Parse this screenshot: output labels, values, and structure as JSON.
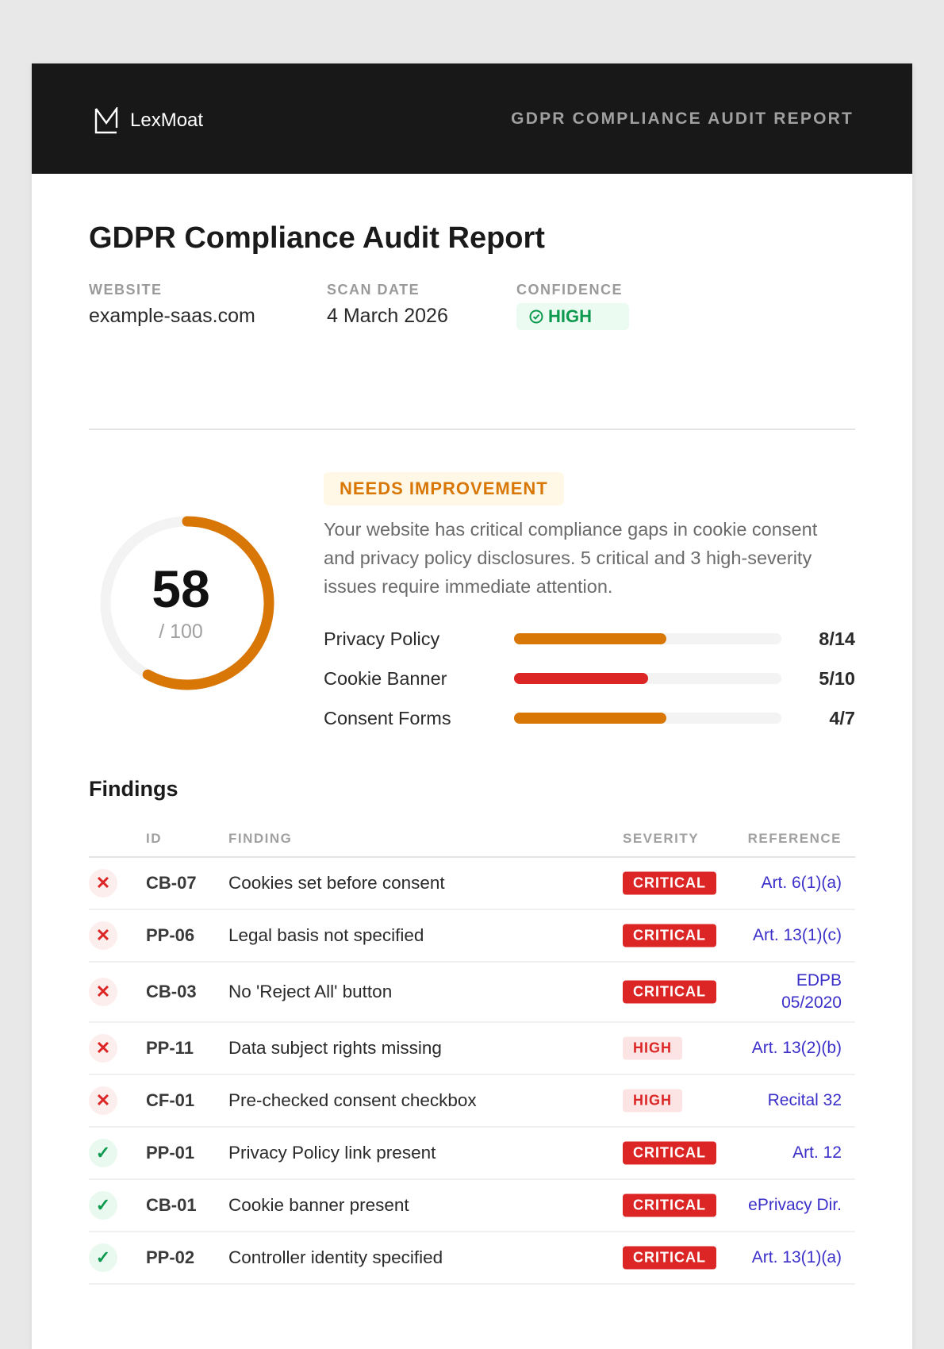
{
  "header": {
    "brand": "LexMoat",
    "title": "GDPR COMPLIANCE AUDIT REPORT"
  },
  "report": {
    "title": "GDPR Compliance Audit Report",
    "meta": [
      {
        "label": "WEBSITE",
        "value": "example-saas.com"
      },
      {
        "label": "SCAN DATE",
        "value": "4 March 2026"
      },
      {
        "label": "CONFIDENCE",
        "value": "HIGH"
      }
    ]
  },
  "score": {
    "value": "58",
    "max": "/ 100",
    "fraction": 0.58,
    "color": "#d97706"
  },
  "status": {
    "badge": "NEEDS IMPROVEMENT",
    "summary": "Your website has critical compliance gaps in cookie consent and privacy policy disclosures. 5 critical and 3 high-severity issues require immediate attention."
  },
  "categories": [
    {
      "label": "Privacy Policy",
      "value": "8/14",
      "fraction": 0.571,
      "color": "#d97706"
    },
    {
      "label": "Cookie Banner",
      "value": "5/10",
      "fraction": 0.5,
      "color": "#dc2626"
    },
    {
      "label": "Consent Forms",
      "value": "4/7",
      "fraction": 0.571,
      "color": "#d97706"
    }
  ],
  "findings": {
    "heading": "Findings",
    "columns": [
      "ID",
      "FINDING",
      "SEVERITY",
      "REFERENCE"
    ],
    "rows": [
      {
        "status": "fail",
        "id": "CB-07",
        "finding": "Cookies set before consent",
        "severity": "CRITICAL",
        "reference": "Art. 6(1)(a)"
      },
      {
        "status": "fail",
        "id": "PP-06",
        "finding": "Legal basis not specified",
        "severity": "CRITICAL",
        "reference": "Art. 13(1)(c)"
      },
      {
        "status": "fail",
        "id": "CB-03",
        "finding": "No 'Reject All' button",
        "severity": "CRITICAL",
        "reference": "EDPB 05/2020"
      },
      {
        "status": "fail",
        "id": "PP-11",
        "finding": "Data subject rights missing",
        "severity": "HIGH",
        "reference": "Art. 13(2)(b)"
      },
      {
        "status": "fail",
        "id": "CF-01",
        "finding": "Pre-checked consent checkbox",
        "severity": "HIGH",
        "reference": "Recital 32"
      },
      {
        "status": "pass",
        "id": "PP-01",
        "finding": "Privacy Policy link present",
        "severity": "CRITICAL",
        "reference": "Art. 12"
      },
      {
        "status": "pass",
        "id": "CB-01",
        "finding": "Cookie banner present",
        "severity": "CRITICAL",
        "reference": "ePrivacy Dir."
      },
      {
        "status": "pass",
        "id": "PP-02",
        "finding": "Controller identity specified",
        "severity": "CRITICAL",
        "reference": "Art. 13(1)(a)"
      }
    ]
  }
}
